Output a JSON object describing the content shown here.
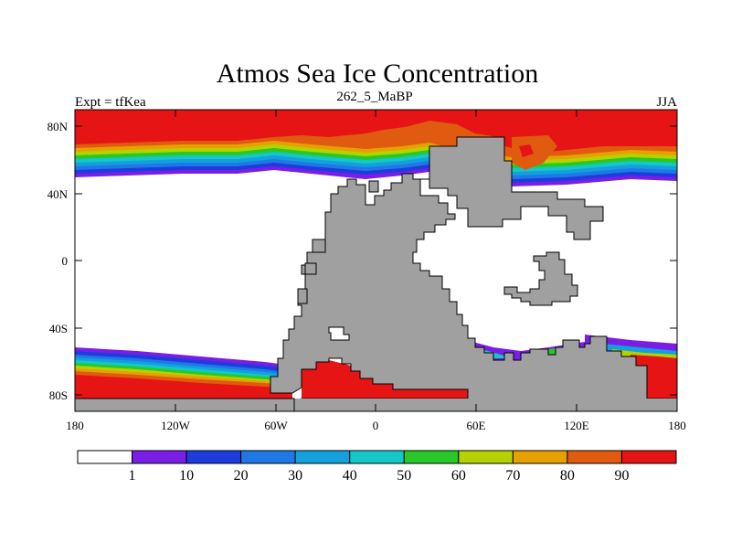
{
  "title": "Atmos Sea Ice Concentration",
  "subtitle": "262_5_MaBP",
  "left_label": "Expt = tfKea",
  "right_label": "JJA",
  "lat_ticks": [
    "80N",
    "40N",
    "0",
    "40S",
    "80S"
  ],
  "lon_ticks": [
    "180",
    "120W",
    "60W",
    "0",
    "60E",
    "120E",
    "180"
  ],
  "colorbar": {
    "labels": [
      "1",
      "10",
      "20",
      "30",
      "40",
      "50",
      "60",
      "70",
      "80",
      "90"
    ],
    "colors": [
      "#ffffff",
      "#7a1ee6",
      "#1e3cdc",
      "#1e78e6",
      "#14a0dc",
      "#14c8c8",
      "#28c828",
      "#b4d200",
      "#e6a000",
      "#e05a10",
      "#e61414"
    ]
  },
  "colors": {
    "land": "#a0a0a0",
    "ocean_open": "#ffffff"
  }
}
